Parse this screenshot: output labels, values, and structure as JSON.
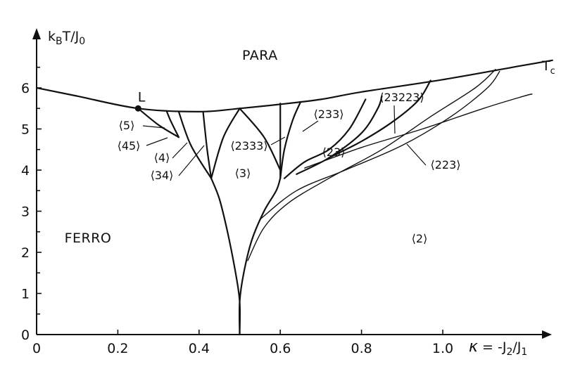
{
  "chart_data": {
    "type": "phase-diagram",
    "axes": {
      "x_label": "κ = -J₂/J₁",
      "y_label": "k_BT/J₀",
      "x_range": [
        0,
        1.3
      ],
      "y_range": [
        0,
        7
      ],
      "x_ticks": [
        0,
        0.2,
        0.4,
        0.6,
        0.8,
        1.0
      ],
      "x_tick_labels": [
        "0",
        "0.2",
        "0.4",
        "0.6",
        "0.8",
        "1.0"
      ],
      "y_ticks": [
        0,
        1,
        2,
        3,
        4,
        5,
        6
      ],
      "y_tick_labels": [
        "0",
        "1",
        "2",
        "3",
        "4",
        "5",
        "6"
      ]
    },
    "critical_line": {
      "label": "T_c",
      "points": [
        [
          0,
          6.0
        ],
        [
          0.1,
          5.8
        ],
        [
          0.25,
          5.5
        ],
        [
          0.4,
          5.42
        ],
        [
          0.5,
          5.5
        ],
        [
          0.6,
          5.6
        ],
        [
          0.7,
          5.72
        ],
        [
          0.8,
          5.9
        ],
        [
          1.0,
          6.2
        ],
        [
          1.2,
          6.55
        ],
        [
          1.27,
          6.67
        ]
      ]
    },
    "lifshitz_point": {
      "label": "L",
      "kappa": 0.25,
      "T": 5.5
    },
    "regions": [
      {
        "label": "PARA",
        "kappa": 0.55,
        "T": 6.3
      },
      {
        "label": "FERRO",
        "kappa": 0.15,
        "T": 2.1
      }
    ],
    "phase_labels": [
      "⟨5⟩",
      "⟨45⟩",
      "⟨4⟩",
      "⟨34⟩",
      "⟨3⟩",
      "⟨2333⟩",
      "⟨233⟩",
      "⟨23⟩",
      "⟨23223⟩",
      "⟨223⟩",
      "⟨2⟩"
    ],
    "boundaries": [
      {
        "name": "ferro-3",
        "points": [
          [
            0.5,
            0.0
          ],
          [
            0.5,
            0.8
          ],
          [
            0.49,
            1.5
          ],
          [
            0.47,
            2.5
          ],
          [
            0.45,
            3.3
          ],
          [
            0.43,
            3.8
          ]
        ]
      },
      {
        "name": "3-23",
        "points": [
          [
            0.5,
            0.0
          ],
          [
            0.5,
            0.8
          ],
          [
            0.51,
            1.5
          ],
          [
            0.53,
            2.3
          ],
          [
            0.56,
            3.0
          ],
          [
            0.59,
            3.5
          ],
          [
            0.6,
            3.8
          ]
        ]
      },
      {
        "name": "23-2-upper",
        "points": [
          [
            0.52,
            1.8
          ],
          [
            0.56,
            2.6
          ],
          [
            0.62,
            3.2
          ],
          [
            0.72,
            3.8
          ],
          [
            0.85,
            4.5
          ],
          [
            0.97,
            5.3
          ],
          [
            1.08,
            6.0
          ],
          [
            1.13,
            6.45
          ]
        ]
      },
      {
        "name": "23-2-lower",
        "points": [
          [
            0.55,
            2.8
          ],
          [
            0.64,
            3.5
          ],
          [
            0.76,
            4.0
          ],
          [
            0.9,
            4.6
          ],
          [
            1.02,
            5.3
          ],
          [
            1.11,
            6.0
          ],
          [
            1.14,
            6.4
          ]
        ]
      },
      {
        "name": "223-2",
        "points": [
          [
            0.66,
            4.05
          ],
          [
            0.8,
            4.55
          ],
          [
            0.95,
            5.0
          ],
          [
            1.1,
            5.5
          ],
          [
            1.2,
            5.8
          ],
          [
            1.22,
            5.85
          ]
        ]
      },
      {
        "name": "23223-right",
        "points": [
          [
            0.72,
            4.3
          ],
          [
            0.8,
            4.7
          ],
          [
            0.88,
            5.2
          ],
          [
            0.94,
            5.7
          ],
          [
            0.97,
            6.18
          ]
        ]
      },
      {
        "name": "23223-left",
        "points": [
          [
            0.64,
            3.9
          ],
          [
            0.72,
            4.3
          ],
          [
            0.8,
            4.9
          ],
          [
            0.84,
            5.5
          ],
          [
            0.85,
            5.8
          ]
        ]
      },
      {
        "name": "233-23",
        "points": [
          [
            0.61,
            3.8
          ],
          [
            0.66,
            4.2
          ],
          [
            0.72,
            4.5
          ],
          [
            0.77,
            5.0
          ],
          [
            0.81,
            5.72
          ]
        ]
      },
      {
        "name": "2333-233-left",
        "points": [
          [
            0.6,
            3.8
          ],
          [
            0.61,
            4.5
          ],
          [
            0.63,
            5.2
          ],
          [
            0.65,
            5.66
          ]
        ]
      },
      {
        "name": "2333-233-right",
        "points": [
          [
            0.6,
            3.8
          ],
          [
            0.6,
            4.5
          ],
          [
            0.6,
            5.62
          ]
        ]
      },
      {
        "name": "3-2333",
        "points": [
          [
            0.5,
            5.5
          ],
          [
            0.56,
            4.8
          ],
          [
            0.6,
            4.0
          ]
        ]
      },
      {
        "name": "3-34",
        "points": [
          [
            0.5,
            5.5
          ],
          [
            0.46,
            4.8
          ],
          [
            0.43,
            3.8
          ]
        ]
      },
      {
        "name": "34-4",
        "points": [
          [
            0.43,
            3.8
          ],
          [
            0.42,
            4.5
          ],
          [
            0.41,
            5.41
          ]
        ]
      },
      {
        "name": "4-45",
        "points": [
          [
            0.43,
            3.8
          ],
          [
            0.38,
            4.6
          ],
          [
            0.35,
            5.42
          ]
        ]
      },
      {
        "name": "45-5",
        "points": [
          [
            0.35,
            4.8
          ],
          [
            0.33,
            5.2
          ],
          [
            0.32,
            5.44
          ]
        ]
      },
      {
        "name": "5-ferro",
        "points": [
          [
            0.25,
            5.5
          ],
          [
            0.3,
            5.1
          ],
          [
            0.35,
            4.8
          ]
        ]
      }
    ]
  }
}
